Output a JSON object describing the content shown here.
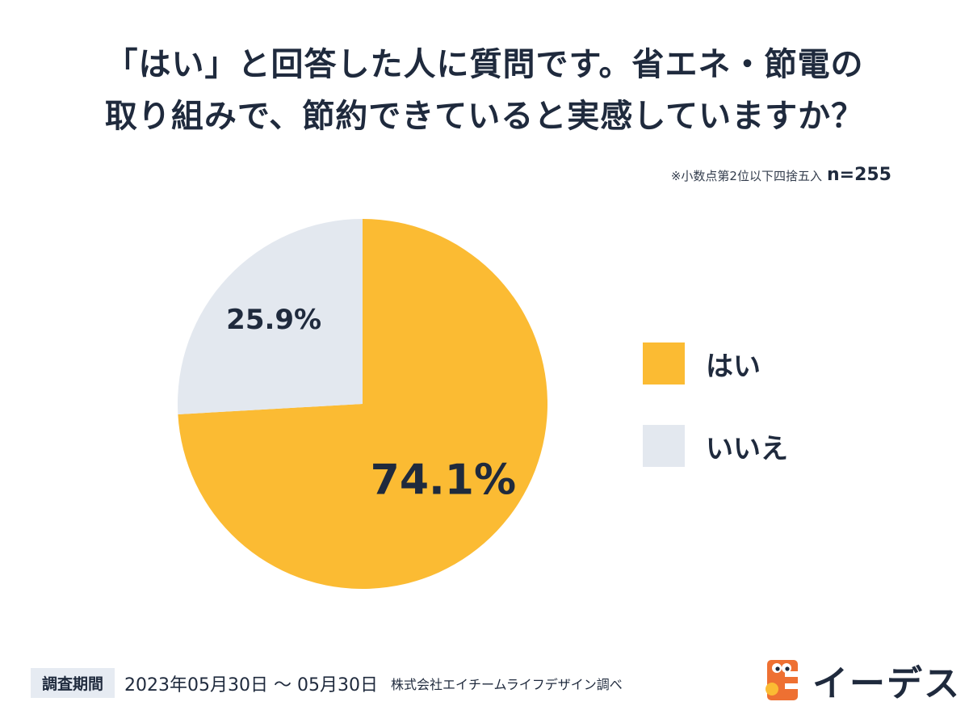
{
  "title": {
    "line1": "「はい」と回答した人に質問です。省エネ・節電の",
    "line2": "取り組みで、節約できていると実感していますか？"
  },
  "note": {
    "rounding": "※小数点第2位以下四捨五入",
    "sample": "n=255"
  },
  "chart_data": {
    "type": "pie",
    "title": "「はい」と回答した人に質問です。省エネ・節電の取り組みで、節約できていると実感していますか？",
    "slices": [
      {
        "name": "はい",
        "value": 74.1,
        "label": "74.1%",
        "color": "#fbbb33"
      },
      {
        "name": "いいえ",
        "value": 25.9,
        "label": "25.9%",
        "color": "#e3e8ef"
      }
    ],
    "unit": "%",
    "sample_size": "n=255",
    "legend_position": "right"
  },
  "footer": {
    "period_label": "調査期間",
    "period_value": "2023年05月30日 〜 05月30日",
    "source": "株式会社エイチームライフデザイン調べ"
  },
  "brand": {
    "name": "イーデス",
    "logo_color": "#ee7032"
  }
}
